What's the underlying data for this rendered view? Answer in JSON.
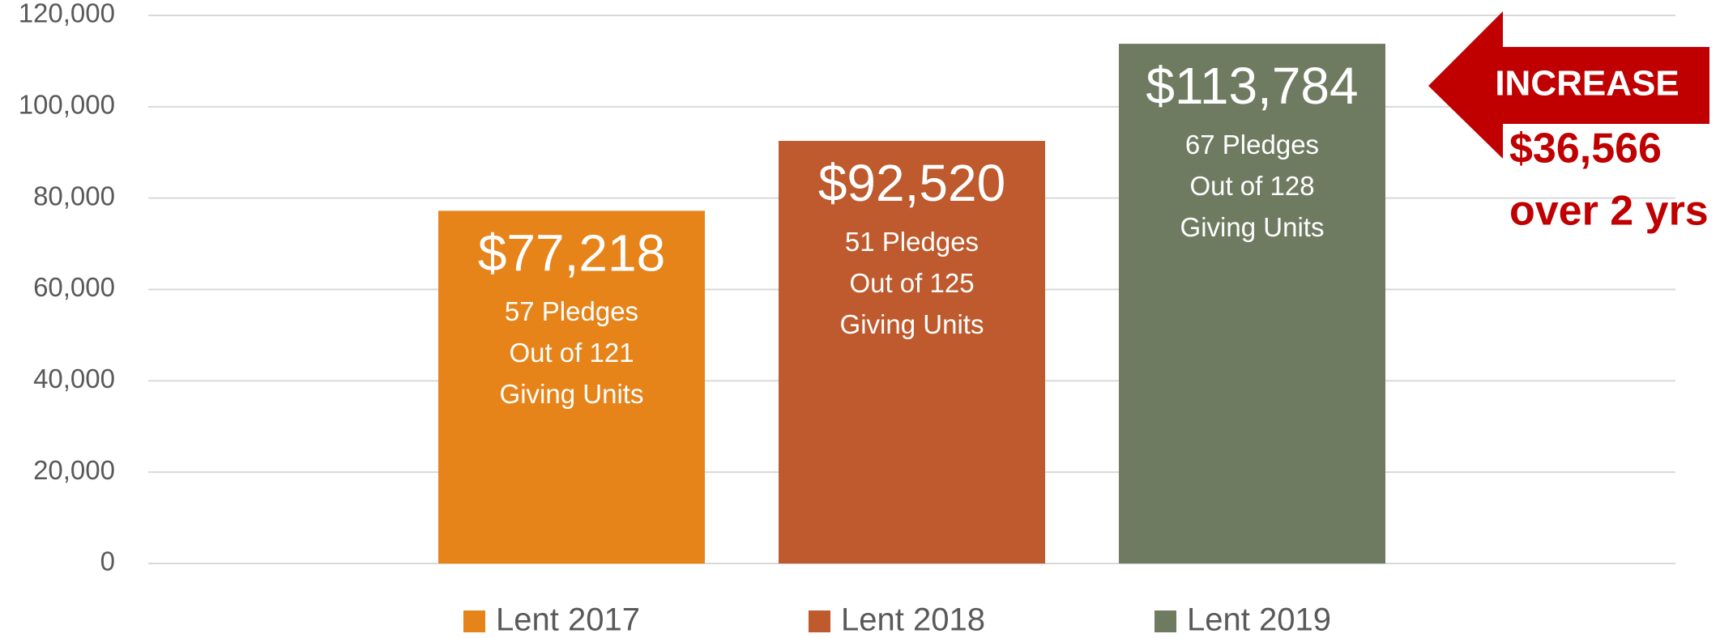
{
  "chart_data": {
    "type": "bar",
    "categories": [
      null
    ],
    "series": [
      {
        "name": "Lent 2017",
        "color": "#e6841a",
        "values": [
          77218
        ],
        "value_labels": [
          "$77,218"
        ],
        "details": [
          "57 Pledges",
          "Out of 121",
          "Giving Units"
        ]
      },
      {
        "name": "Lent 2018",
        "color": "#be5a2d",
        "values": [
          92520
        ],
        "value_labels": [
          "$92,520"
        ],
        "details": [
          "51 Pledges",
          "Out of 125",
          "Giving Units"
        ]
      },
      {
        "name": "Lent 2019",
        "color": "#6f7b61",
        "values": [
          113784
        ],
        "value_labels": [
          "$113,784"
        ],
        "details": [
          "67 Pledges",
          "Out of 128",
          "Giving Units"
        ]
      }
    ],
    "ylim": [
      0,
      120000
    ],
    "yticks": [
      0,
      {
        "value": 20000,
        "label": "20,000"
      },
      {
        "value": 40000,
        "label": "40,000"
      },
      {
        "value": 60000,
        "label": "60,000"
      },
      {
        "value": 80000,
        "label": "80,000"
      },
      {
        "value": 100000,
        "label": "100,000"
      },
      {
        "value": 120000,
        "label": "120,000"
      }
    ],
    "grid": true,
    "legend": "bottom",
    "annotation": {
      "label": "INCREASE",
      "amount": "$36,566",
      "period": "over 2 yrs",
      "color": "#c00000"
    }
  }
}
